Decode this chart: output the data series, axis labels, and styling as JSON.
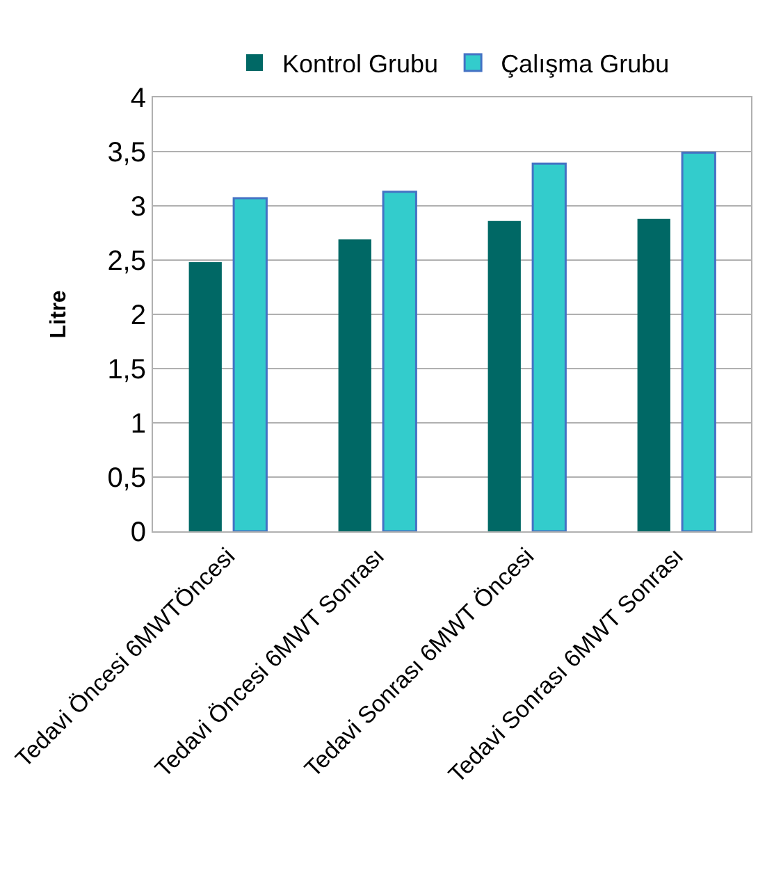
{
  "chart_data": {
    "type": "bar",
    "ylabel": "Litre",
    "categories": [
      "Tedavi Öncesi 6MWTÖncesi",
      "Tedavi Öncesi 6MWT Sonrası",
      "Tedavi Sonrası 6MWT Öncesi",
      "Tedavi Sonrası 6MWT Sonrası"
    ],
    "series": [
      {
        "name": "Kontrol Grubu",
        "color": "#006865",
        "values": [
          2.48,
          2.69,
          2.86,
          2.88
        ]
      },
      {
        "name": "Çalışma Grubu",
        "color": "#33cccc",
        "values": [
          3.07,
          3.13,
          3.39,
          3.49
        ]
      }
    ],
    "ylim": [
      0,
      4
    ],
    "yticks": [
      0,
      {
        "value": 0.5,
        "label": "0,5"
      },
      1,
      {
        "value": 1.5,
        "label": "1,5"
      },
      2,
      {
        "value": 2.5,
        "label": "2,5"
      },
      3,
      {
        "value": 3.5,
        "label": "3,5"
      },
      4
    ],
    "grid": "y",
    "legend": "top"
  }
}
